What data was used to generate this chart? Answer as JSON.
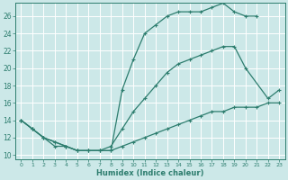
{
  "xlabel": "Humidex (Indice chaleur)",
  "bg_color": "#cce8e8",
  "grid_color": "#b0d4d4",
  "line_color": "#2d7d6e",
  "xlim": [
    -0.5,
    23.5
  ],
  "ylim": [
    9.5,
    27.5
  ],
  "xticks": [
    0,
    1,
    2,
    3,
    4,
    5,
    6,
    7,
    8,
    9,
    10,
    11,
    12,
    13,
    14,
    15,
    16,
    17,
    18,
    19,
    20,
    21,
    22,
    23
  ],
  "yticks": [
    10,
    12,
    14,
    16,
    18,
    20,
    22,
    24,
    26
  ],
  "line1_x": [
    0,
    1,
    2,
    3,
    4,
    5,
    6,
    7,
    8,
    9,
    10,
    11,
    12,
    13,
    14,
    15,
    16,
    17,
    18,
    19,
    20,
    21
  ],
  "line1_y": [
    14,
    13,
    12,
    11,
    11,
    10.5,
    10.5,
    10.5,
    10.5,
    17.5,
    21,
    24,
    25,
    26,
    26.5,
    26.5,
    26.5,
    27,
    27.5,
    26.5,
    26,
    26
  ],
  "line2_x": [
    0,
    1,
    2,
    3,
    4,
    5,
    6,
    7,
    8,
    9,
    10,
    11,
    12,
    13,
    14,
    15,
    16,
    17,
    18,
    19,
    20,
    22,
    23
  ],
  "line2_y": [
    14,
    13,
    12,
    11.5,
    11,
    10.5,
    10.5,
    10.5,
    11,
    13,
    15,
    16.5,
    18,
    19.5,
    20.5,
    21,
    21.5,
    22,
    22.5,
    22.5,
    20,
    16.5,
    17.5
  ],
  "line3_x": [
    0,
    1,
    2,
    3,
    4,
    5,
    6,
    7,
    8,
    9,
    10,
    11,
    12,
    13,
    14,
    15,
    16,
    17,
    18,
    19,
    20,
    21,
    22,
    23
  ],
  "line3_y": [
    14,
    13,
    12,
    11.5,
    11,
    10.5,
    10.5,
    10.5,
    10.5,
    11,
    11.5,
    12,
    12.5,
    13,
    13.5,
    14,
    14.5,
    15,
    15,
    15.5,
    15.5,
    15.5,
    16,
    16
  ]
}
